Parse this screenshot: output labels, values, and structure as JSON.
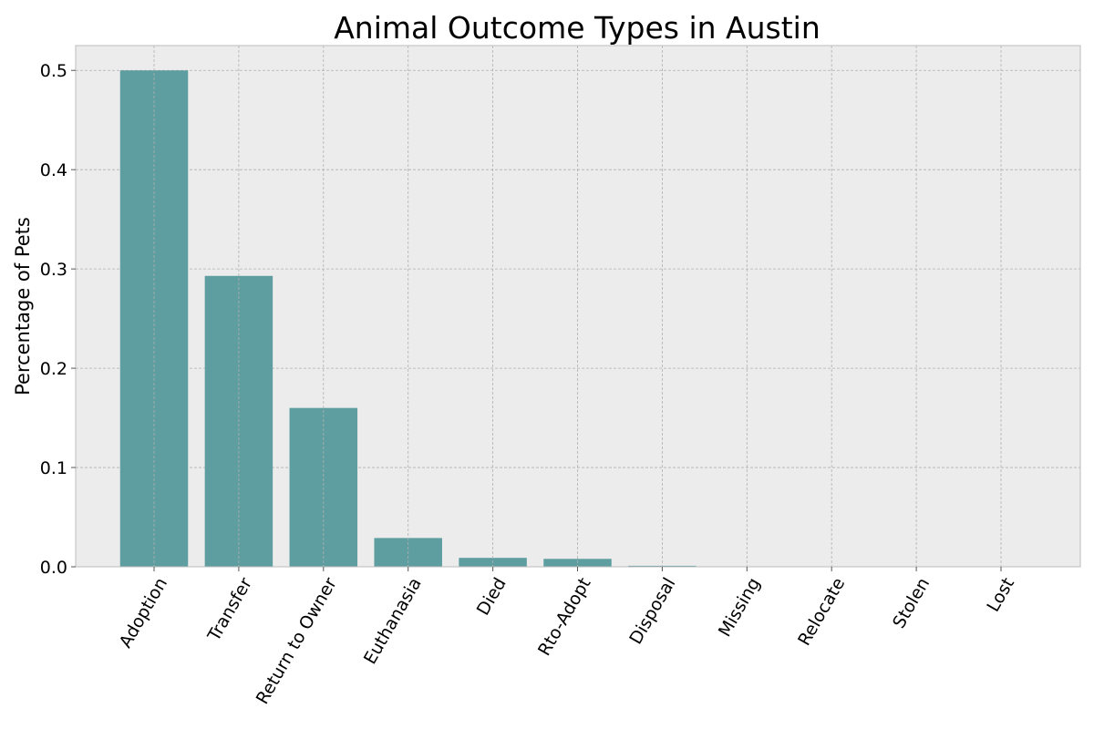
{
  "chart_data": {
    "type": "bar",
    "title": "Animal Outcome Types in Austin",
    "xlabel": "",
    "ylabel": "Percentage of Pets",
    "categories": [
      "Adoption",
      "Transfer",
      "Return to Owner",
      "Euthanasia",
      "Died",
      "Rto-Adopt",
      "Disposal",
      "Missing",
      "Relocate",
      "Stolen",
      "Lost"
    ],
    "values": [
      0.5,
      0.293,
      0.16,
      0.029,
      0.009,
      0.008,
      0.001,
      0.0003,
      0.0002,
      0.0001,
      0.0001
    ],
    "ylim": [
      0,
      0.525
    ],
    "yticks": [
      0.0,
      0.1,
      0.2,
      0.3,
      0.4,
      0.5
    ],
    "ytick_labels": [
      "0.0",
      "0.1",
      "0.2",
      "0.3",
      "0.4",
      "0.5"
    ],
    "grid": true,
    "colors": {
      "bar": "#5f9ea0",
      "plot_background": "#ececec",
      "grid": "#b0b0b0",
      "axes_edge": "#bcbcbc"
    }
  }
}
